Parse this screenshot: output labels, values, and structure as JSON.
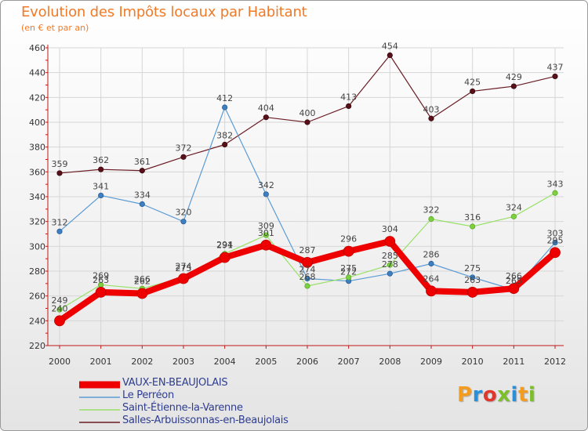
{
  "header": {
    "title": "Evolution des Impôts locaux par Habitant",
    "subtitle": "(en € et par an)"
  },
  "logo": {
    "text": "Proxiti",
    "colors": [
      "#f39c1f",
      "#2a8fd6",
      "#e0362c",
      "#7cbf2a",
      "#2a8fd6",
      "#f39c1f",
      "#7cbf2a"
    ]
  },
  "chart_data": {
    "type": "line",
    "title": "Evolution des Impôts locaux par Habitant",
    "subtitle": "(en € et par an)",
    "xlabel": "",
    "ylabel": "",
    "ylim": [
      220,
      460
    ],
    "yticks": [
      220,
      240,
      260,
      280,
      300,
      320,
      340,
      360,
      380,
      400,
      420,
      440,
      460
    ],
    "grid": true,
    "categories": [
      "2000",
      "2001",
      "2002",
      "2003",
      "2004",
      "2005",
      "2006",
      "2007",
      "2008",
      "2009",
      "2010",
      "2011",
      "2012"
    ],
    "series": [
      {
        "name": "Salles-Arbuissonnas-en-Beaujolais",
        "color": "#6b1c24",
        "values": [
          359,
          362,
          361,
          372,
          382,
          404,
          400,
          413,
          454,
          403,
          425,
          429,
          437
        ]
      },
      {
        "name": "Le Perréon",
        "color": "#5b9bd5",
        "values": [
          312,
          341,
          334,
          320,
          412,
          342,
          274,
          272,
          278,
          286,
          275,
          265,
          303
        ]
      },
      {
        "name": "Saint-Étienne-la-Varenne",
        "color": "#99e068",
        "values": [
          249,
          269,
          266,
          275,
          294,
          309,
          268,
          275,
          285,
          322,
          316,
          324,
          343
        ]
      },
      {
        "name": "VAUX-EN-BEAUJOLAIS",
        "color": "#ee0000",
        "values": [
          240,
          263,
          262,
          274,
          291,
          301,
          287,
          296,
          304,
          264,
          263,
          266,
          295
        ]
      }
    ],
    "legend": [
      "VAUX-EN-BEAUJOLAIS",
      "Le Perréon",
      "Saint-Étienne-la-Varenne",
      "Salles-Arbuissonnas-en-Beaujolais"
    ]
  }
}
